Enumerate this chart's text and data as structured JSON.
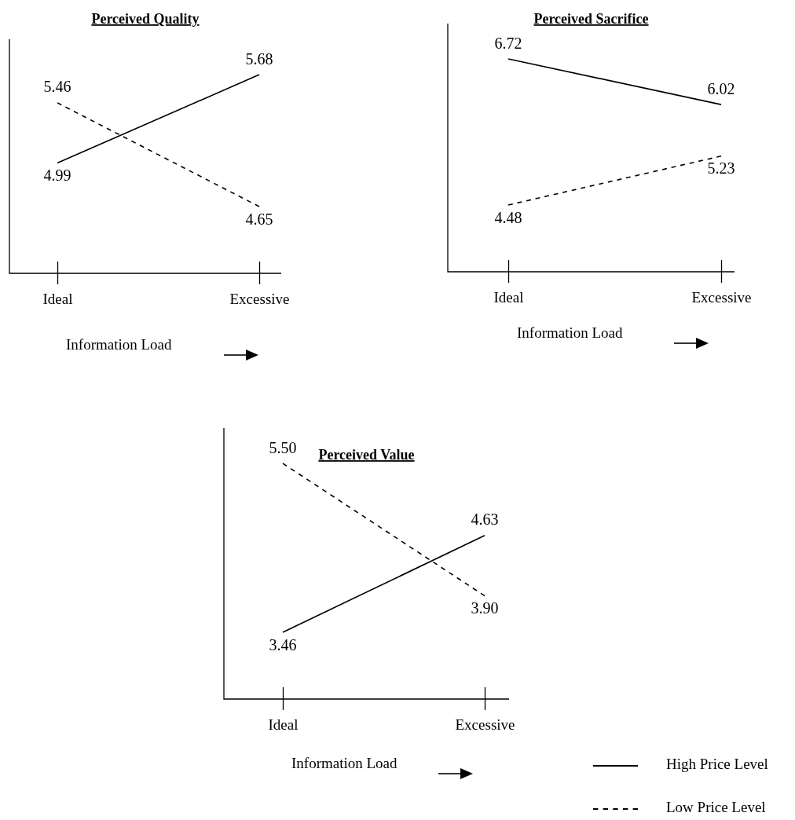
{
  "chart_data": [
    {
      "type": "line",
      "title": "Perceived Quality",
      "xlabel": "Information Load",
      "categories": [
        "Ideal",
        "Excessive"
      ],
      "tick_labels": "x",
      "series": [
        {
          "color": "#000000",
          "line_style": "solid",
          "values": [
            4.99,
            5.68
          ],
          "value_labels": [
            "4.99",
            "5.68"
          ]
        },
        {
          "color": "#000000",
          "line_style": "dashed",
          "values": [
            5.46,
            4.65
          ],
          "value_labels": [
            "5.46",
            "4.65"
          ]
        }
      ]
    },
    {
      "type": "line",
      "title": "Perceived Sacrifice",
      "xlabel": "Information Load",
      "categories": [
        "Ideal",
        "Excessive"
      ],
      "tick_labels": "x",
      "series": [
        {
          "color": "#000000",
          "line_style": "solid",
          "values": [
            6.72,
            6.02
          ],
          "value_labels": [
            "6.72",
            "6.02"
          ]
        },
        {
          "color": "#000000",
          "line_style": "dashed",
          "values": [
            4.48,
            5.23
          ],
          "value_labels": [
            "4.48",
            "5.23"
          ]
        }
      ]
    },
    {
      "type": "line",
      "title": "Perceived Value",
      "xlabel": "Information Load",
      "categories": [
        "Ideal",
        "Excessive"
      ],
      "tick_labels": "x",
      "legend": "bottom right",
      "series": [
        {
          "name": "High Price Level",
          "color": "#000000",
          "line_style": "solid",
          "values": [
            3.46,
            4.63
          ],
          "value_labels": [
            "3.46",
            "4.63"
          ]
        },
        {
          "name": "Low Price Level",
          "color": "#000000",
          "line_style": "dashed",
          "values": [
            5.5,
            3.9
          ],
          "value_labels": [
            "5.50",
            "3.90"
          ]
        }
      ]
    }
  ]
}
